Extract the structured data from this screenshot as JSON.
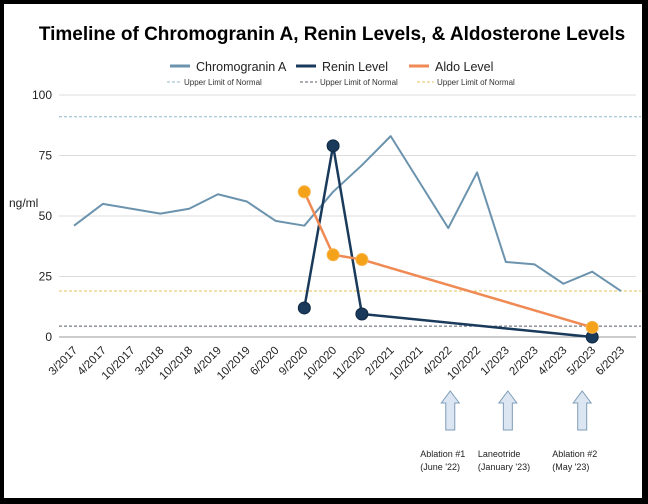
{
  "chart_data": {
    "type": "line",
    "title": "Timeline of Chromogranin A, Renin Levels, & Aldosterone Levels",
    "ylabel": "ng/ml",
    "xlabel": "",
    "ylim": [
      0,
      100
    ],
    "yticks": [
      0,
      25,
      50,
      75,
      100
    ],
    "categories": [
      "3/2017",
      "4/2017",
      "10/2017",
      "3/2018",
      "10/2018",
      "4/2019",
      "10/2019",
      "6/2020",
      "9/2020",
      "10/2020",
      "11/2020",
      "2/2021",
      "10/2021",
      "4/2022",
      "10/2022",
      "1/2023",
      "2/2023",
      "4/2023",
      "5/2023",
      "6/2023"
    ],
    "grid": true,
    "legend_position": "top",
    "series": [
      {
        "name": "Chromogranin A",
        "color": "#6b93ad",
        "marker": "none",
        "values": [
          46,
          55,
          53,
          51,
          53,
          59,
          56,
          48,
          46,
          60,
          71,
          83,
          64,
          45,
          68,
          31,
          30,
          22,
          27,
          19
        ]
      },
      {
        "name": "Renin Level",
        "color": "#1a3a5c",
        "marker": "circle",
        "points": [
          [
            8,
            12
          ],
          [
            9,
            79
          ],
          [
            10,
            9.5
          ],
          [
            18,
            0
          ]
        ]
      },
      {
        "name": "Aldo Level",
        "color": "#ef8a54",
        "marker": "circle",
        "marker_color": "#f5a21b",
        "points": [
          [
            8,
            60
          ],
          [
            9,
            34
          ],
          [
            10,
            32
          ],
          [
            18,
            4
          ]
        ]
      }
    ],
    "reference_lines": [
      {
        "name": "Upper Limit of Normal",
        "value": 91,
        "color": "#8fb8c9",
        "style": "dashed"
      },
      {
        "name": "Upper Limit of Normal",
        "value": 4.5,
        "color": "#555b66",
        "style": "dashed"
      },
      {
        "name": "Upper Limit of Normal",
        "value": 19,
        "color": "#e6c35c",
        "style": "dashed"
      }
    ],
    "annotations": [
      {
        "category_index": 13,
        "line1": "Ablation #1",
        "line2": "(June '22)"
      },
      {
        "category_index": 15,
        "line1": "Laneotride",
        "line2": "(January '23)"
      },
      {
        "category_index": 18,
        "line1": "Ablation #2",
        "line2": "(May '23)"
      }
    ]
  }
}
